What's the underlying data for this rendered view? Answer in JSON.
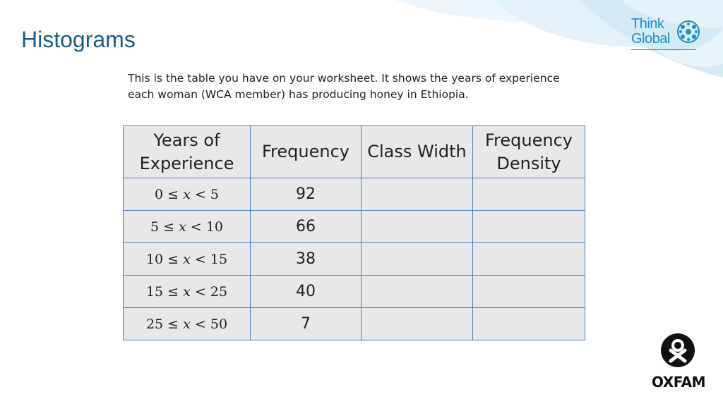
{
  "header": {
    "title": "Histograms"
  },
  "intro": {
    "line1": "This is the table you have on your worksheet. It shows the years of experience",
    "line2": "each woman (WCA member) has producing honey in Ethiopia."
  },
  "logo_think_global": {
    "line1": "Think",
    "line2": "Global"
  },
  "table": {
    "headers": {
      "years_line1": "Years of",
      "years_line2": "Experience",
      "frequency": "Frequency",
      "class_width": "Class Width",
      "density_line1": "Frequency",
      "density_line2": "Density"
    },
    "rows": [
      {
        "lo": "0",
        "hi": "5",
        "frequency": "92",
        "class_width": "",
        "density": ""
      },
      {
        "lo": "5",
        "hi": "10",
        "frequency": "66",
        "class_width": "",
        "density": ""
      },
      {
        "lo": "10",
        "hi": "15",
        "frequency": "38",
        "class_width": "",
        "density": ""
      },
      {
        "lo": "15",
        "hi": "25",
        "frequency": "40",
        "class_width": "",
        "density": ""
      },
      {
        "lo": "25",
        "hi": "50",
        "frequency": "7",
        "class_width": "",
        "density": ""
      }
    ],
    "range_variable": "x",
    "range_lower_symbol": "≤",
    "range_upper_symbol": "<"
  },
  "logo_oxfam": {
    "word": "OXFAM"
  },
  "colors": {
    "title": "#1f5a85",
    "accent": "#1e8fc7",
    "table_border": "#4a7fc1",
    "table_fill": "#e8e8e8",
    "swirl": "#dcedf7"
  }
}
